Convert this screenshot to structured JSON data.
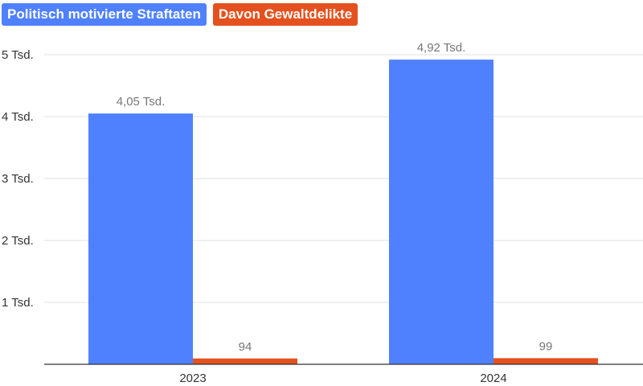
{
  "chart_data": {
    "type": "bar",
    "categories": [
      "2023",
      "2024"
    ],
    "series": [
      {
        "name": "Politisch motivierte Straftaten",
        "color": "#4f81ff",
        "values": [
          4050,
          4920
        ],
        "labels": [
          "4,05 Tsd.",
          "4,92 Tsd."
        ]
      },
      {
        "name": "Davon Gewaltdelikte",
        "color": "#e4511e",
        "values": [
          94,
          99
        ],
        "labels": [
          "94",
          "99"
        ]
      }
    ],
    "ylim": [
      0,
      5000
    ],
    "yticks": [
      1000,
      2000,
      3000,
      4000,
      5000
    ],
    "ytick_labels": [
      "1 Tsd.",
      "2 Tsd.",
      "3 Tsd.",
      "4 Tsd.",
      "5 Tsd."
    ],
    "grid": true,
    "legend_position": "top-left"
  }
}
